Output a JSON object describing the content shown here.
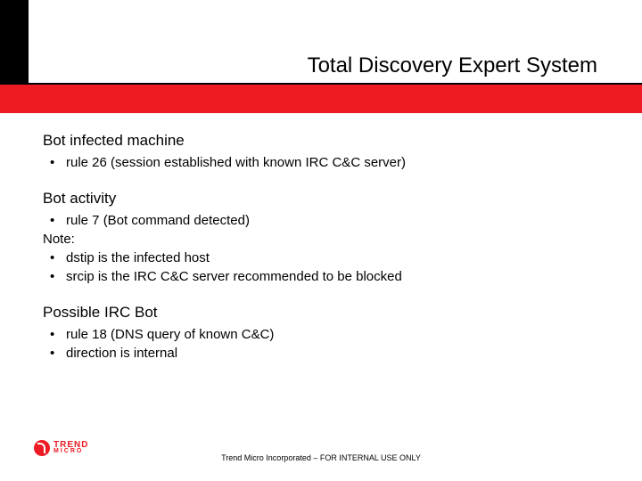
{
  "title": "Total Discovery Expert System",
  "colors": {
    "accent_red": "#ed1c24",
    "black": "#000000",
    "white": "#ffffff"
  },
  "sections": [
    {
      "heading": "Bot infected machine",
      "items": [
        {
          "type": "bullet",
          "text": "rule 26 (session established with known IRC C&C server)"
        }
      ]
    },
    {
      "heading": "Bot activity",
      "items": [
        {
          "type": "bullet",
          "text": "rule 7 (Bot command detected)"
        },
        {
          "type": "note",
          "text": "Note:"
        },
        {
          "type": "bullet",
          "text": "dstip is the infected host"
        },
        {
          "type": "bullet",
          "text": "srcip is the IRC C&C server recommended to be blocked"
        }
      ]
    },
    {
      "heading": "Possible IRC Bot",
      "items": [
        {
          "type": "bullet",
          "text": "rule 18 (DNS query of known C&C)"
        },
        {
          "type": "bullet",
          "text": "direction is internal"
        }
      ]
    }
  ],
  "logo": {
    "line1": "TREND",
    "line2": "MICRO"
  },
  "footer": "Trend Micro Incorporated – FOR INTERNAL USE ONLY"
}
